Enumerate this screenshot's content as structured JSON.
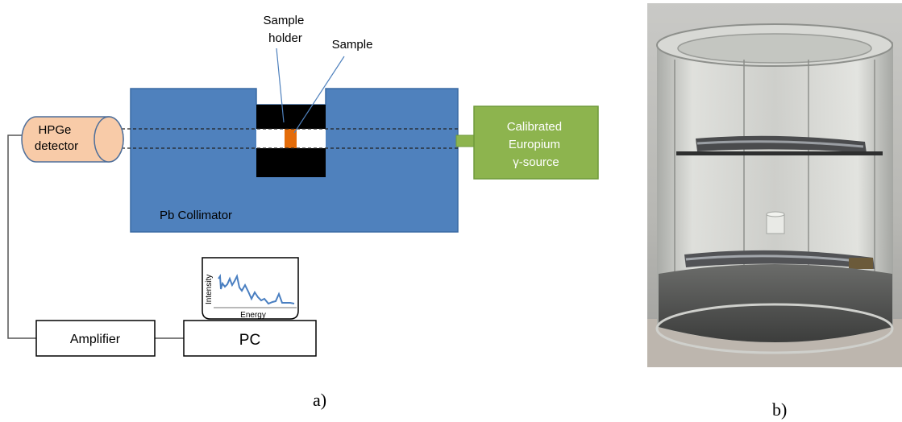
{
  "panel_a": {
    "label_sample_holder": "Sample\nholder",
    "label_sample": "Sample",
    "detector_label": "HPGe\ndetector",
    "source_label": "Calibrated\nEuropium\nγ-source",
    "collimator_label": "Pb Collimator",
    "amplifier_label": "Amplifier",
    "pc_label": "PC",
    "spectrum": {
      "xlabel": "Energy",
      "ylabel": "Intensity"
    },
    "caption": "a)"
  },
  "panel_b": {
    "caption": "b)"
  },
  "colors": {
    "collimator": "#4f81bd",
    "detector": "#f8cba8",
    "source": "#8db44e",
    "sample": "#e46c0a",
    "spectrum_line": "#4a7fc1"
  }
}
